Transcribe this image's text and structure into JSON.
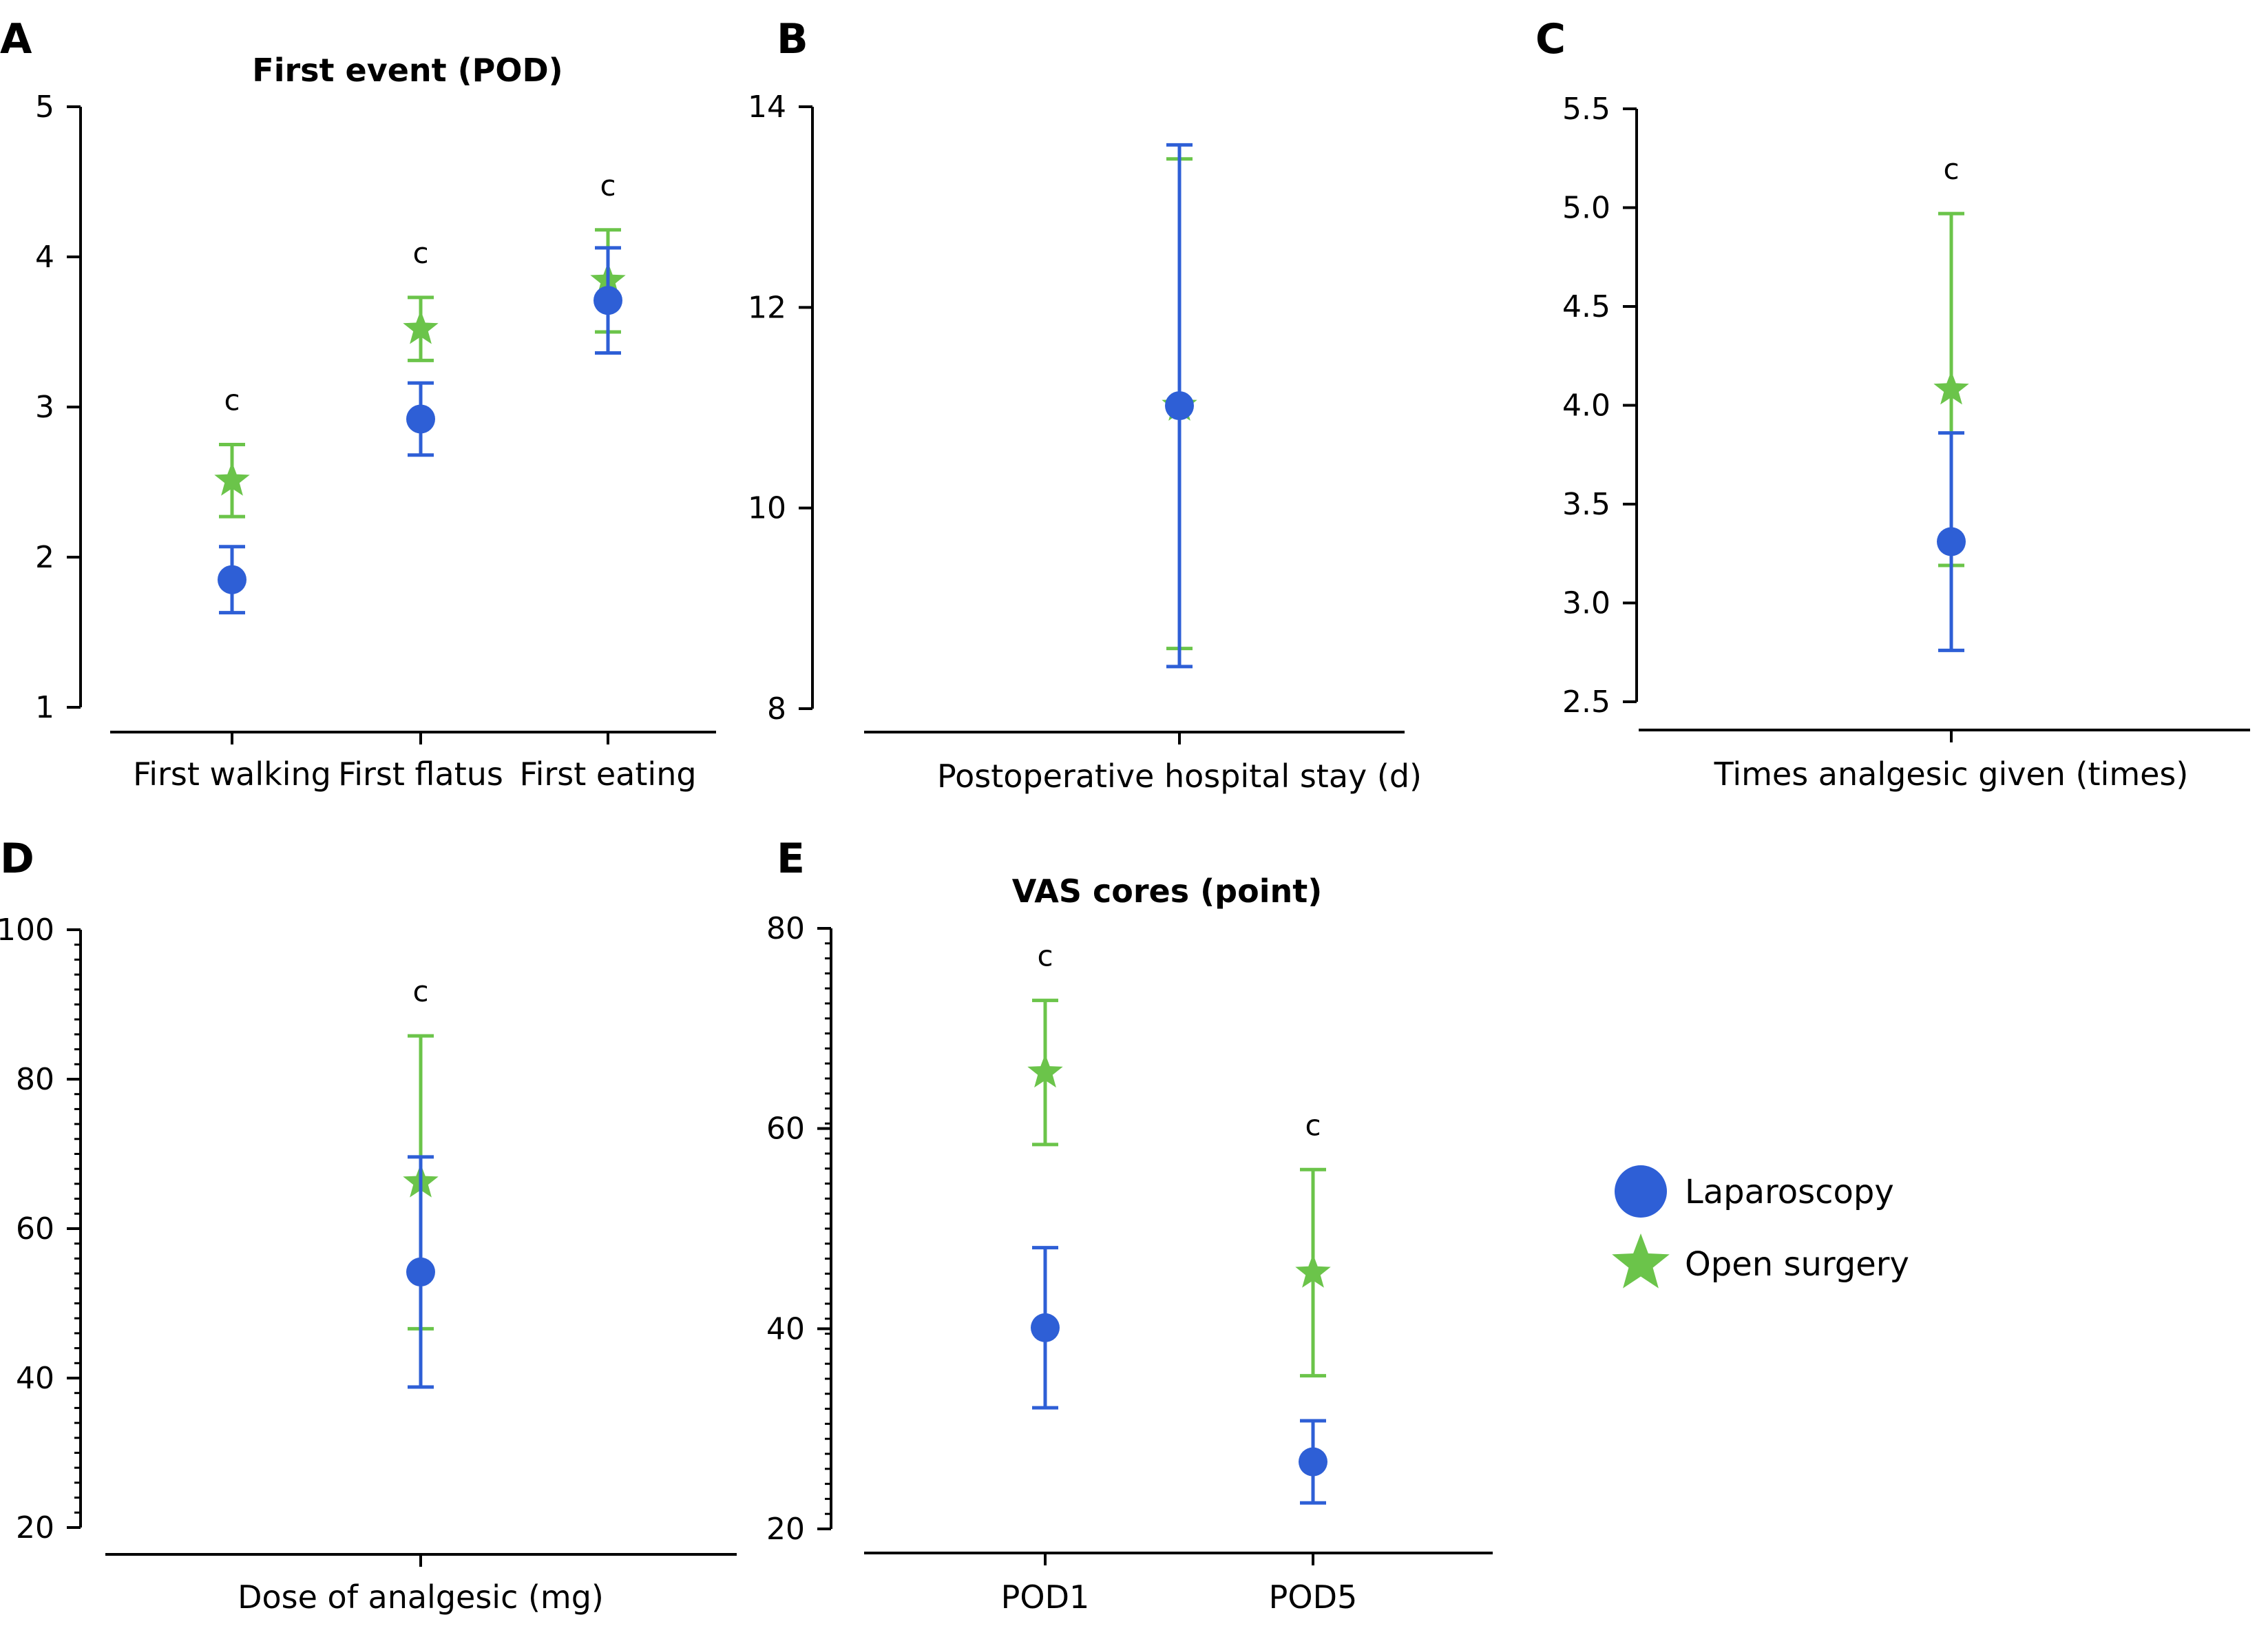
{
  "colors": {
    "laparoscopy": "#2e5fd6",
    "open_surgery": "#6bc44a",
    "axis": "#000000"
  },
  "legend": {
    "items": [
      {
        "label": "Laparoscopy",
        "marker": "circle",
        "color": "#2e5fd6"
      },
      {
        "label": "Open surgery",
        "marker": "star",
        "color": "#6bc44a"
      }
    ]
  },
  "chart_data": [
    {
      "panel": "A",
      "type": "scatter",
      "title": "First event (POD)",
      "categories": [
        "First walking",
        "First flatus",
        "First eating"
      ],
      "ylim": [
        1,
        5
      ],
      "yticks": [
        "1",
        "2",
        "3",
        "4",
        "5"
      ],
      "series": [
        {
          "name": "Laparoscopy",
          "values": [
            1.85,
            2.92,
            3.71
          ],
          "lower": [
            1.63,
            2.68,
            3.36
          ],
          "upper": [
            2.07,
            3.16,
            4.06
          ]
        },
        {
          "name": "Open surgery",
          "values": [
            2.51,
            3.52,
            3.84
          ],
          "lower": [
            2.27,
            3.31,
            3.5
          ],
          "upper": [
            2.75,
            3.73,
            4.18
          ]
        }
      ],
      "annotations": [
        "c",
        "c",
        "c"
      ]
    },
    {
      "panel": "B",
      "type": "scatter",
      "title": "",
      "categories": [
        "Postoperative hospital stay (d)"
      ],
      "ylim": [
        8,
        14
      ],
      "yticks": [
        "8",
        "10",
        "12",
        "14"
      ],
      "series": [
        {
          "name": "Laparoscopy",
          "values": [
            11.02
          ],
          "lower": [
            8.42
          ],
          "upper": [
            13.62
          ]
        },
        {
          "name": "Open surgery",
          "values": [
            11.02
          ],
          "lower": [
            8.6
          ],
          "upper": [
            13.48
          ]
        }
      ],
      "annotations": [
        ""
      ]
    },
    {
      "panel": "C",
      "type": "scatter",
      "title": "",
      "categories": [
        "Times analgesic given (times)"
      ],
      "ylim": [
        2.5,
        5.5
      ],
      "yticks": [
        "2.5",
        "3.0",
        "3.5",
        "4.0",
        "4.5",
        "5.0",
        "5.5"
      ],
      "series": [
        {
          "name": "Laparoscopy",
          "values": [
            3.31
          ],
          "lower": [
            2.76
          ],
          "upper": [
            3.86
          ]
        },
        {
          "name": "Open surgery",
          "values": [
            4.08
          ],
          "lower": [
            3.19
          ],
          "upper": [
            4.97
          ]
        }
      ],
      "annotations": [
        "c"
      ]
    },
    {
      "panel": "D",
      "type": "scatter",
      "title": "",
      "categories": [
        "Dose of analgesic (mg)"
      ],
      "ylim": [
        20,
        100
      ],
      "yticks": [
        "20",
        "40",
        "60",
        "80",
        "100"
      ],
      "series": [
        {
          "name": "Laparoscopy",
          "values": [
            54.2
          ],
          "lower": [
            38.8
          ],
          "upper": [
            69.6
          ]
        },
        {
          "name": "Open surgery",
          "values": [
            66.2
          ],
          "lower": [
            46.6
          ],
          "upper": [
            85.8
          ]
        }
      ],
      "annotations": [
        "c"
      ]
    },
    {
      "panel": "E",
      "type": "scatter",
      "title": "VAS cores (point)",
      "categories": [
        "POD1",
        "POD5"
      ],
      "ylim": [
        20,
        80
      ],
      "yticks": [
        "20",
        "40",
        "60",
        "80"
      ],
      "series": [
        {
          "name": "Laparoscopy",
          "values": [
            40.1,
            26.7
          ],
          "lower": [
            32.1,
            22.6
          ],
          "upper": [
            48.1,
            30.8
          ]
        },
        {
          "name": "Open surgery",
          "values": [
            65.6,
            45.6
          ],
          "lower": [
            58.4,
            35.3
          ],
          "upper": [
            72.8,
            55.9
          ]
        }
      ],
      "annotations": [
        "c",
        "c"
      ]
    }
  ]
}
